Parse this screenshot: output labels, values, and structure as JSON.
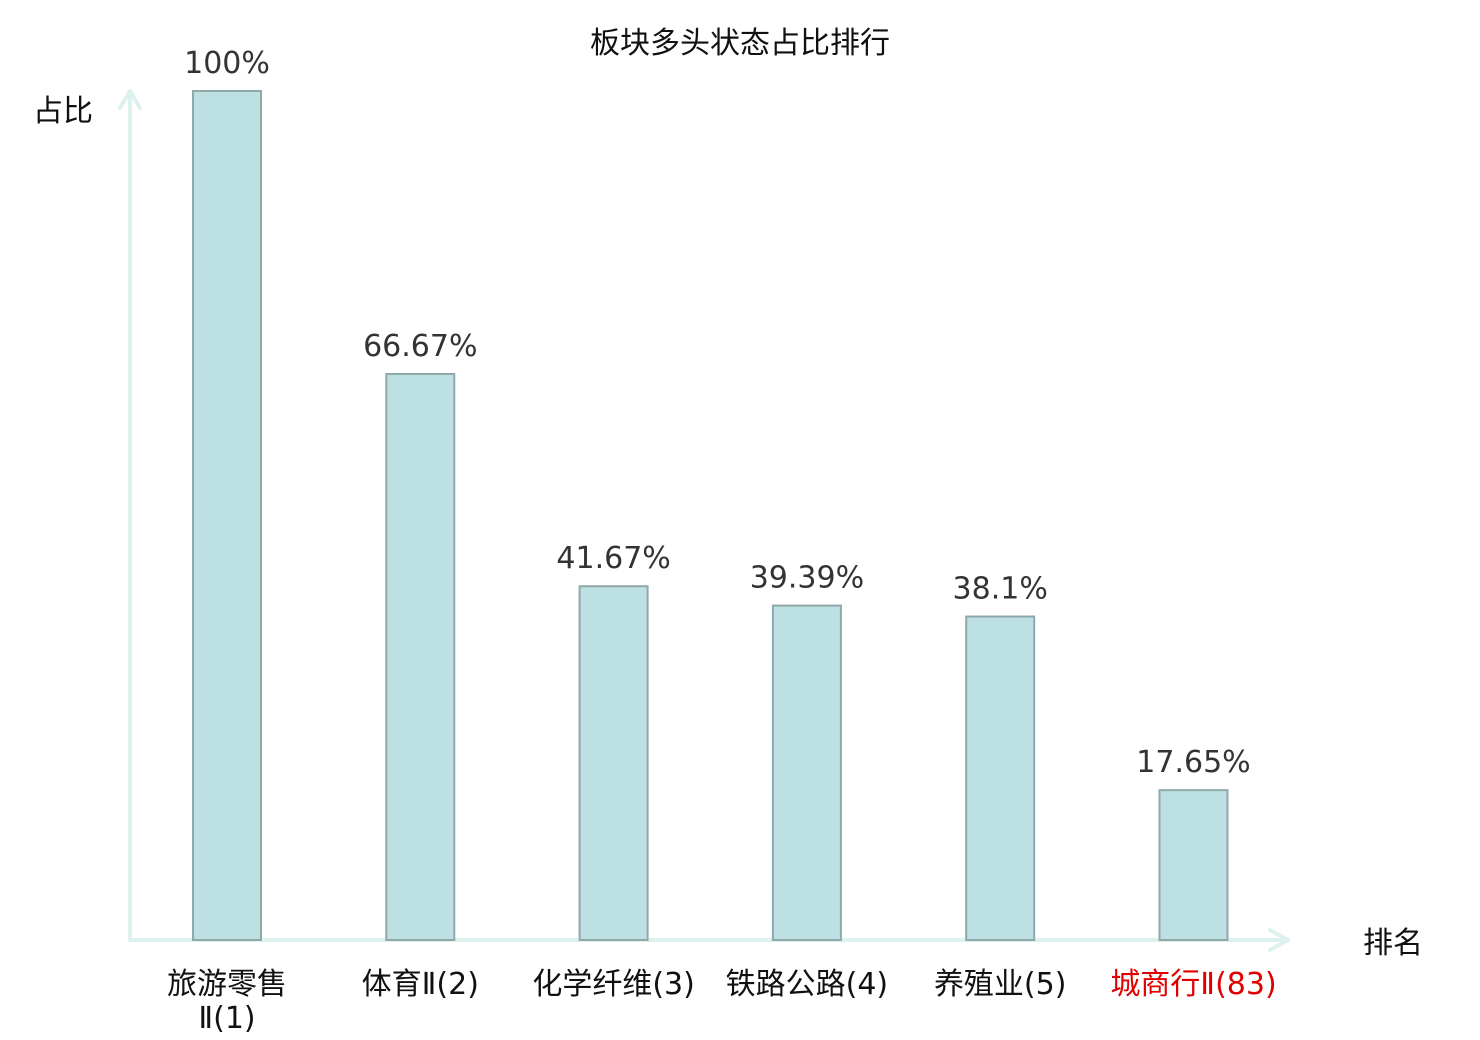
{
  "chart_data": {
    "type": "bar",
    "title": "板块多头状态占比排行",
    "ylabel": "占比",
    "xlabel": "排名",
    "categories": [
      [
        "旅游零售",
        "Ⅱ(1)"
      ],
      [
        "体育Ⅱ(2)"
      ],
      [
        "化学纤维(3)"
      ],
      [
        "铁路公路(4)"
      ],
      [
        "养殖业(5)"
      ],
      [
        "城商行Ⅱ(83)"
      ]
    ],
    "values": [
      100,
      66.67,
      41.67,
      39.39,
      38.1,
      17.65
    ],
    "value_labels": [
      "100%",
      "66.67%",
      "41.67%",
      "39.39%",
      "38.1%",
      "17.65%"
    ],
    "highlight_index": 5,
    "ylim": [
      0,
      100
    ],
    "grid": false,
    "legend": "none"
  },
  "colors": {
    "bar_fill": "#bde0e2",
    "bar_stroke": "#8fa8aa",
    "axis": "#ddf2ef",
    "label": "#111111",
    "value_label": "#333333",
    "highlight": "#e00000"
  }
}
